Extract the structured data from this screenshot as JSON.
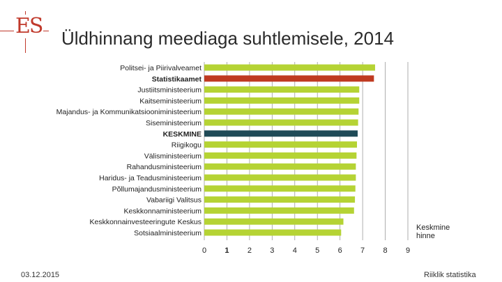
{
  "header": {
    "logo_text": "ES",
    "title": "Üldhinnang meediaga suhtlemisele, 2014"
  },
  "footer": {
    "date": "03.12.2015",
    "organization": "Riiklik statistika"
  },
  "colors": {
    "default_bar": "#b5d334",
    "highlight_bar": "#bf3a21",
    "average_bar": "#1f4a57",
    "grid": "#9a9a9a"
  },
  "chart_data": {
    "type": "bar",
    "orientation": "horizontal",
    "categories": [
      "Politsei- ja Piirivalveamet",
      "Statistikaamet",
      "Justiitsministeerium",
      "Kaitseministeerium",
      "Majandus- ja Kommunikatsiooniministeerium",
      "Siseministeerium",
      "KESKMINE",
      "Riigikogu",
      "Välisministeerium",
      "Rahandusministeerium",
      "Haridus- ja Teadusministeerium",
      "Põllumajandusministeerium",
      "Vabariigi Valitsus",
      "Keskkonnaministeerium",
      "Keskkonnainvesteeringute Keskus",
      "Sotsiaalministeerium"
    ],
    "values": [
      7.55,
      7.5,
      6.85,
      6.85,
      6.82,
      6.8,
      6.78,
      6.75,
      6.73,
      6.7,
      6.7,
      6.68,
      6.66,
      6.62,
      6.15,
      6.05
    ],
    "bold_categories": [
      "Statistikaamet",
      "KESKMINE"
    ],
    "highlight": {
      "Statistikaamet": "highlight",
      "KESKMINE": "average"
    },
    "x_ticks": [
      "0",
      "1",
      "2",
      "3",
      "4",
      "5",
      "6",
      "7",
      "8",
      "9"
    ],
    "xlim": [
      0,
      9
    ],
    "xlabel": "Keskmine hinne",
    "grid": "vertical"
  }
}
